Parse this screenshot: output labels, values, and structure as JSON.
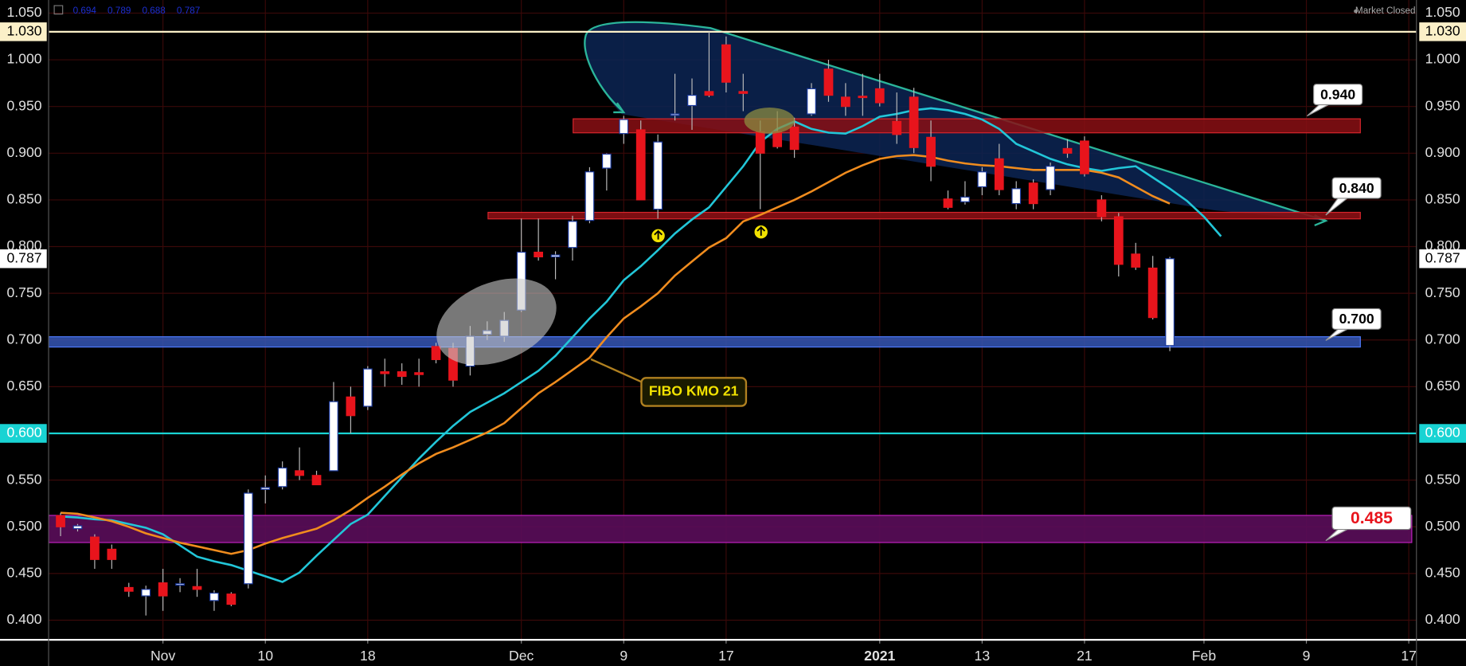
{
  "chart_data": {
    "type": "candlestick",
    "status": "Market Closed",
    "open": [
      0.512,
      0.498,
      0.489,
      0.476,
      0.435,
      0.426,
      0.44,
      0.438,
      0.436,
      0.421,
      0.428,
      0.439,
      0.54,
      0.543,
      0.56,
      0.555,
      0.56,
      0.639,
      0.629,
      0.666,
      0.666,
      0.665,
      0.693,
      0.691,
      0.672,
      0.706,
      0.704,
      0.732,
      0.794,
      0.789,
      0.799,
      0.828,
      0.884,
      0.921,
      0.925,
      0.84,
      0.941,
      0.951,
      0.966,
      1.016,
      0.966,
      0.923,
      0.923,
      0.928,
      0.942,
      0.99,
      0.96,
      0.961,
      0.969,
      0.934,
      0.96,
      0.917,
      0.851,
      0.848,
      0.864,
      0.894,
      0.846,
      0.868,
      0.861,
      0.905,
      0.913,
      0.85,
      0.832,
      0.792,
      0.777,
      0.694,
      null,
      null,
      null
    ],
    "high": [
      0.515,
      0.503,
      0.492,
      0.481,
      0.44,
      0.437,
      0.455,
      0.445,
      0.455,
      0.432,
      0.43,
      0.54,
      0.555,
      0.57,
      0.585,
      0.56,
      0.655,
      0.65,
      0.672,
      0.68,
      0.675,
      0.68,
      0.697,
      0.697,
      0.715,
      0.72,
      0.73,
      0.83,
      0.83,
      0.795,
      0.833,
      0.885,
      0.9,
      0.94,
      0.935,
      0.92,
      0.985,
      0.98,
      1.03,
      1.025,
      0.985,
      0.935,
      0.945,
      0.938,
      0.975,
      1.0,
      0.975,
      0.985,
      0.985,
      0.965,
      0.97,
      0.935,
      0.86,
      0.87,
      0.885,
      0.91,
      0.87,
      0.872,
      0.89,
      0.915,
      0.918,
      0.855,
      0.836,
      0.804,
      0.79,
      0.789,
      null,
      null,
      null
    ],
    "low": [
      0.49,
      0.495,
      0.455,
      0.455,
      0.425,
      0.405,
      0.41,
      0.43,
      0.425,
      0.41,
      0.415,
      0.434,
      0.525,
      0.54,
      0.55,
      0.545,
      0.56,
      0.6,
      0.625,
      0.65,
      0.652,
      0.65,
      0.675,
      0.65,
      0.662,
      0.7,
      0.698,
      0.73,
      0.785,
      0.765,
      0.785,
      0.825,
      0.86,
      0.91,
      0.85,
      0.83,
      0.935,
      0.925,
      0.96,
      0.965,
      0.945,
      0.84,
      0.905,
      0.895,
      0.94,
      0.955,
      0.94,
      0.94,
      0.95,
      0.91,
      0.9,
      0.87,
      0.84,
      0.845,
      0.855,
      0.855,
      0.84,
      0.84,
      0.855,
      0.895,
      0.875,
      0.827,
      0.768,
      0.775,
      0.722,
      0.688,
      null,
      null,
      null
    ],
    "close": [
      0.5,
      0.501,
      0.465,
      0.465,
      0.431,
      0.433,
      0.426,
      0.439,
      0.433,
      0.429,
      0.417,
      0.536,
      0.542,
      0.563,
      0.555,
      0.545,
      0.634,
      0.619,
      0.669,
      0.664,
      0.661,
      0.663,
      0.679,
      0.657,
      0.704,
      0.71,
      0.721,
      0.794,
      0.789,
      0.791,
      0.827,
      0.88,
      0.899,
      0.936,
      0.85,
      0.912,
      0.942,
      0.962,
      0.962,
      0.976,
      0.964,
      0.9,
      0.907,
      0.904,
      0.969,
      0.962,
      0.95,
      0.96,
      0.954,
      0.92,
      0.906,
      0.886,
      0.842,
      0.853,
      0.88,
      0.861,
      0.862,
      0.846,
      0.886,
      0.9,
      0.878,
      0.832,
      0.781,
      0.778,
      0.724,
      0.787,
      null,
      null,
      null
    ],
    "up_color": "#ffffff",
    "down_color": "#e8141c",
    "series": [
      {
        "color": "#22c6d8",
        "values": [
          0.511,
          0.51,
          0.508,
          0.507,
          0.503,
          0.499,
          0.492,
          0.48,
          0.468,
          0.463,
          0.459,
          0.453,
          0.447,
          0.441,
          0.451,
          0.469,
          0.486,
          0.503,
          0.513,
          0.533,
          0.553,
          0.573,
          0.591,
          0.608,
          0.623,
          0.633,
          0.643,
          0.655,
          0.667,
          0.683,
          0.703,
          0.723,
          0.741,
          0.764,
          0.779,
          0.796,
          0.814,
          0.829,
          0.842,
          0.864,
          0.886,
          0.912,
          0.926,
          0.934,
          0.926,
          0.922,
          0.921,
          0.929,
          0.939,
          0.942,
          0.946,
          0.948,
          0.946,
          0.942,
          0.936,
          0.926,
          0.91,
          0.902,
          0.894,
          0.888,
          0.884,
          0.881,
          0.884,
          0.886,
          0.874,
          0.862,
          0.849,
          0.832,
          0.811
        ]
      },
      {
        "name": "FIBO KMO 21",
        "color": "#f08c1e",
        "values": [
          0.515,
          0.514,
          0.51,
          0.506,
          0.5,
          0.493,
          0.488,
          0.483,
          0.479,
          0.475,
          0.471,
          0.475,
          0.482,
          0.488,
          0.493,
          0.498,
          0.507,
          0.518,
          0.531,
          0.543,
          0.556,
          0.568,
          0.578,
          0.585,
          0.593,
          0.601,
          0.611,
          0.627,
          0.643,
          0.655,
          0.668,
          0.681,
          0.703,
          0.723,
          0.736,
          0.75,
          0.769,
          0.784,
          0.799,
          0.809,
          0.827,
          0.834,
          0.842,
          0.85,
          0.859,
          0.869,
          0.879,
          0.887,
          0.894,
          0.897,
          0.898,
          0.896,
          0.892,
          0.889,
          0.887,
          0.886,
          0.884,
          0.882,
          0.882,
          0.882,
          0.882,
          0.879,
          0.874,
          0.864,
          0.854,
          0.846,
          null,
          null,
          null
        ]
      }
    ],
    "xlim": [
      -0.7,
      79.45
    ],
    "xticks": [
      {
        "value": 6,
        "label": "Nov"
      },
      {
        "value": 12,
        "label": "10"
      },
      {
        "value": 18,
        "label": "18"
      },
      {
        "value": 27,
        "label": "Dec"
      },
      {
        "value": 33,
        "label": "9"
      },
      {
        "value": 39,
        "label": "17"
      },
      {
        "value": 48,
        "label": "2021"
      },
      {
        "value": 54,
        "label": "13"
      },
      {
        "value": 60,
        "label": "21"
      },
      {
        "value": 67,
        "label": "Feb"
      },
      {
        "value": 73,
        "label": "9"
      },
      {
        "value": 79,
        "label": "17"
      }
    ],
    "ylim": [
      0.38,
      1.064
    ],
    "yticks": [
      {
        "value": 0.4,
        "label": "0.400"
      },
      {
        "value": 0.45,
        "label": "0.450"
      },
      {
        "value": 0.5,
        "label": "0.500"
      },
      {
        "value": 0.55,
        "label": "0.550"
      },
      {
        "value": 0.6,
        "label": "0.600"
      },
      {
        "value": 0.65,
        "label": "0.650"
      },
      {
        "value": 0.7,
        "label": "0.700"
      },
      {
        "value": 0.75,
        "label": "0.750"
      },
      {
        "value": 0.8,
        "label": "0.800"
      },
      {
        "value": 0.85,
        "label": "0.850"
      },
      {
        "value": 0.9,
        "label": "0.900"
      },
      {
        "value": 0.95,
        "label": "0.950"
      },
      {
        "value": 1.0,
        "label": "1.000"
      },
      {
        "value": 1.05,
        "label": "1.050"
      }
    ],
    "grid": true,
    "levels": [
      {
        "value": 1.03,
        "label": "1.030",
        "color": "#fbf0c8",
        "line": true
      },
      {
        "value": 0.787,
        "label": "0.787",
        "color": "#ffffff",
        "line": false
      },
      {
        "value": 0.6,
        "label": "0.600",
        "color": "#19d3d3",
        "line": true
      }
    ],
    "annotations": [
      "0.940",
      "0.840",
      "0.700",
      "0.485"
    ]
  }
}
